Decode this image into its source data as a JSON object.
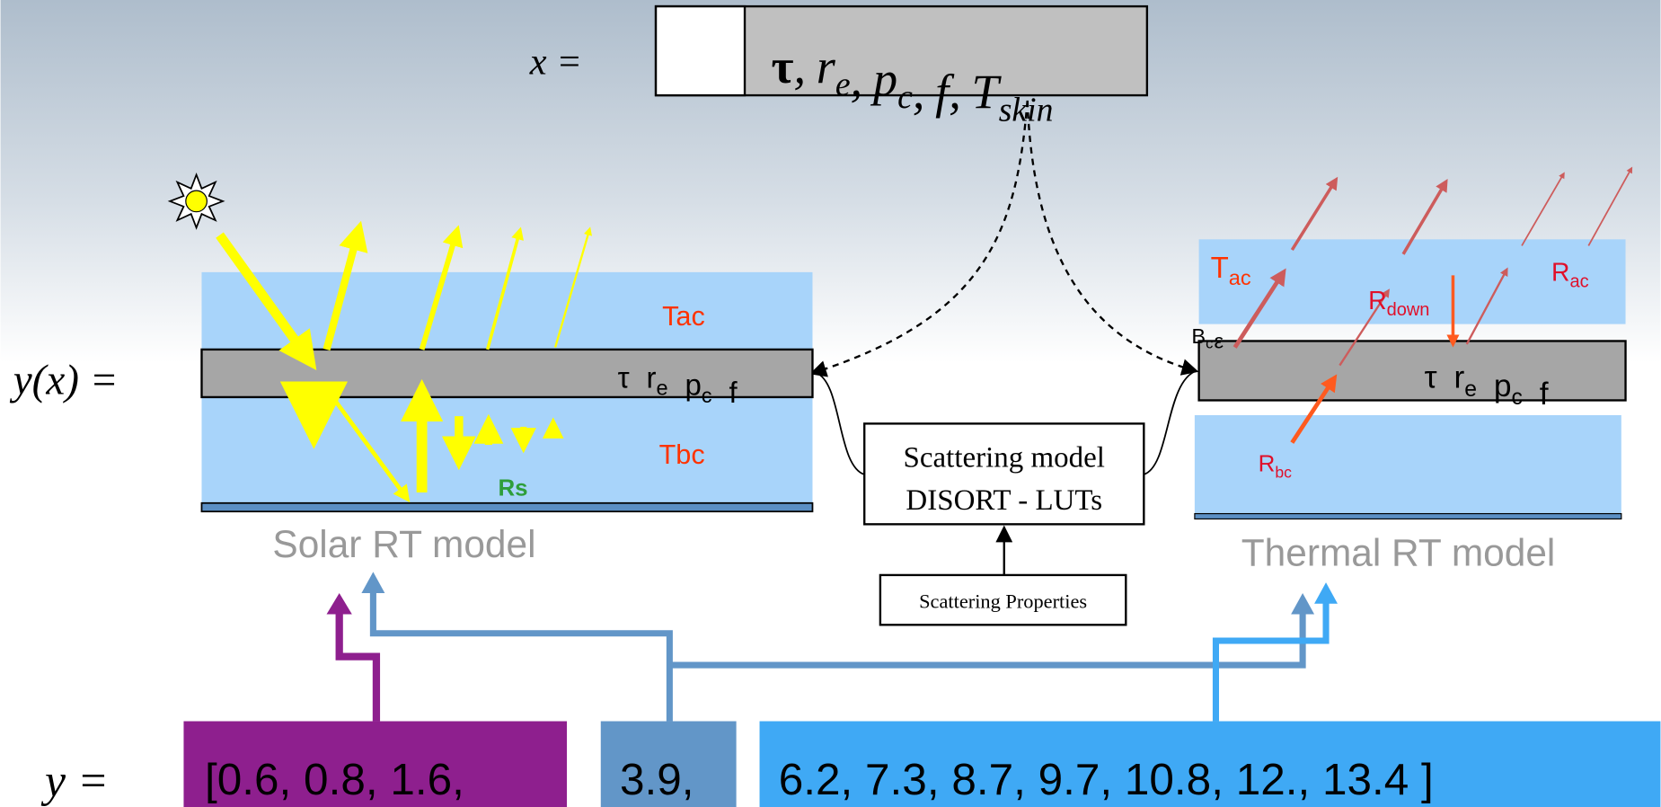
{
  "x_label": "x =",
  "state_vector": {
    "terms": [
      {
        "base": "τ"
      },
      {
        "base": "r",
        "sub": "e"
      },
      {
        "base": "p",
        "sub": "c"
      },
      {
        "base": "f"
      },
      {
        "base": "T",
        "sub": "skin"
      }
    ],
    "separator": ","
  },
  "yx_label": "y(x) =",
  "solar_model": {
    "above_cloud": "Tac",
    "below_cloud": "Tbc",
    "surface": "Rs",
    "cloud_terms": [
      {
        "base": "τ"
      },
      {
        "base": "r",
        "sub": "e"
      },
      {
        "base": "p",
        "sub": "c"
      },
      {
        "base": "f"
      }
    ],
    "caption": "Solar RT model"
  },
  "thermal_model": {
    "above_cloud": {
      "base": "T",
      "sub": "ac"
    },
    "downward": {
      "base": "R",
      "sub": "down"
    },
    "above_radiance": {
      "base": "R",
      "sub": "ac"
    },
    "cloud_emission": [
      {
        "base": "B",
        "sub": "c"
      },
      {
        "base": "ε"
      }
    ],
    "below_cloud": {
      "base": "R",
      "sub": "bc"
    },
    "cloud_terms": [
      {
        "base": "τ"
      },
      {
        "base": "r",
        "sub": "e"
      },
      {
        "base": "p",
        "sub": "c"
      },
      {
        "base": "f"
      }
    ],
    "caption": "Thermal RT model"
  },
  "scattering_model": {
    "lines": [
      "Scattering model",
      "DISORT - LUTs"
    ]
  },
  "scattering_properties": "Scattering Properties",
  "y_label": "y =",
  "channels": {
    "solar": "[0.6, 0.8, 1.6,",
    "mid": "3.9,",
    "thermal": "6.2, 7.3, 8.7, 9.7, 10.8, 12., 13.4 ]"
  }
}
